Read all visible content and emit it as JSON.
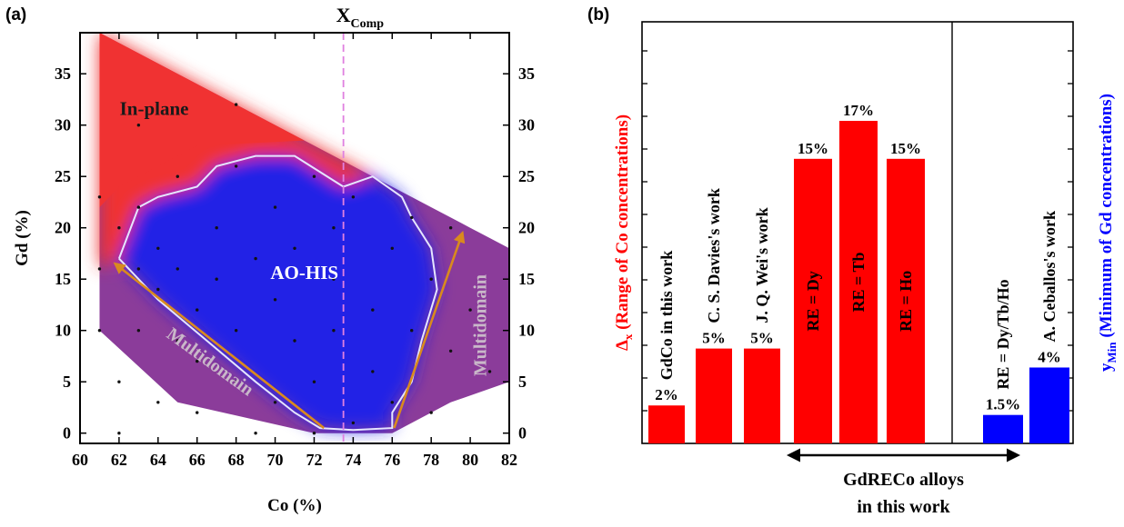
{
  "chart_data": [
    {
      "panel_label": "(a)",
      "type": "heatmap",
      "xlabel": "Co (%)",
      "ylabel": "Gd (%)",
      "xlim": [
        60,
        82
      ],
      "ylim": [
        -1,
        39
      ],
      "x_ticks": [
        60,
        62,
        64,
        66,
        68,
        70,
        72,
        74,
        76,
        78,
        80,
        82
      ],
      "y_ticks": [
        0,
        5,
        10,
        15,
        20,
        25,
        30,
        35
      ],
      "right_axis_ticks": [
        0,
        5,
        10,
        15,
        20,
        25,
        30,
        35
      ],
      "grid": false,
      "colors": {
        "in_plane": "#f03232",
        "ao_his": "#2323e6",
        "multidomain": "#8b3c9a",
        "arrow": "#d98a1e",
        "xcomp_line": "#e080e0",
        "boundary": "#e6e6ff"
      },
      "xcomp": {
        "label_main": "X",
        "label_sub": "Comp",
        "x": 73.5
      },
      "region_outline": [
        [
          61,
          39
        ],
        [
          65,
          35
        ],
        [
          75,
          25
        ],
        [
          78,
          22
        ],
        [
          80,
          20
        ],
        [
          82,
          18
        ],
        [
          82,
          5
        ],
        [
          79,
          3
        ],
        [
          76,
          0
        ],
        [
          72,
          0
        ],
        [
          65,
          3
        ],
        [
          61,
          10
        ]
      ],
      "in_plane_region": [
        [
          61,
          39
        ],
        [
          65,
          35
        ],
        [
          75,
          25
        ],
        [
          73.5,
          24
        ],
        [
          71,
          27
        ],
        [
          69,
          27
        ],
        [
          67,
          26
        ],
        [
          66,
          24
        ],
        [
          64,
          23
        ],
        [
          63,
          22
        ],
        [
          62,
          17
        ],
        [
          61,
          16
        ]
      ],
      "ao_his_region": [
        [
          62,
          17
        ],
        [
          63,
          22
        ],
        [
          64,
          23
        ],
        [
          66,
          24
        ],
        [
          67,
          26
        ],
        [
          69,
          27
        ],
        [
          71,
          27
        ],
        [
          73.5,
          24
        ],
        [
          75,
          25
        ],
        [
          76.5,
          23
        ],
        [
          77,
          21
        ],
        [
          78,
          18
        ],
        [
          78.3,
          14
        ],
        [
          77.5,
          9
        ],
        [
          77,
          5
        ],
        [
          76,
          2
        ],
        [
          76,
          0.5
        ],
        [
          74,
          0.3
        ],
        [
          72.3,
          0.5
        ],
        [
          71,
          2
        ],
        [
          69,
          5
        ],
        [
          66.5,
          9
        ],
        [
          64,
          13
        ]
      ],
      "boundary_curve": [
        [
          62,
          17
        ],
        [
          63,
          22
        ],
        [
          64,
          23
        ],
        [
          66,
          24
        ],
        [
          67,
          26
        ],
        [
          69,
          27
        ],
        [
          71,
          27
        ],
        [
          73.5,
          24
        ],
        [
          75,
          25
        ],
        [
          76.5,
          23
        ],
        [
          77,
          21
        ],
        [
          78,
          18
        ],
        [
          78.3,
          14
        ],
        [
          77.5,
          9
        ],
        [
          77,
          5
        ],
        [
          76,
          2
        ],
        [
          76,
          0.5
        ],
        [
          74,
          0.3
        ],
        [
          72.3,
          0.5
        ],
        [
          71,
          2
        ],
        [
          69,
          5
        ],
        [
          66.5,
          9
        ],
        [
          64,
          13
        ],
        [
          62,
          17
        ]
      ],
      "sample_points": [
        [
          61,
          16
        ],
        [
          61,
          23
        ],
        [
          61,
          10
        ],
        [
          62,
          0
        ],
        [
          62,
          5
        ],
        [
          62,
          20
        ],
        [
          63,
          30
        ],
        [
          63,
          22
        ],
        [
          63,
          16
        ],
        [
          63,
          10
        ],
        [
          64,
          3
        ],
        [
          64,
          14
        ],
        [
          64,
          18
        ],
        [
          65,
          25
        ],
        [
          65,
          16
        ],
        [
          65,
          9
        ],
        [
          66,
          2
        ],
        [
          66,
          7
        ],
        [
          66,
          12
        ],
        [
          67,
          20
        ],
        [
          67,
          15
        ],
        [
          68,
          32
        ],
        [
          68,
          26
        ],
        [
          68,
          10
        ],
        [
          68,
          5
        ],
        [
          69,
          17
        ],
        [
          69,
          0
        ],
        [
          70,
          22
        ],
        [
          70,
          13
        ],
        [
          70,
          3
        ],
        [
          71,
          18
        ],
        [
          71,
          9
        ],
        [
          72,
          25
        ],
        [
          72,
          5
        ],
        [
          72,
          0
        ],
        [
          73,
          15
        ],
        [
          73,
          20
        ],
        [
          73,
          10
        ],
        [
          74,
          1
        ],
        [
          74,
          23
        ],
        [
          75,
          12
        ],
        [
          75,
          6
        ],
        [
          76,
          18
        ],
        [
          76,
          3
        ],
        [
          77,
          21
        ],
        [
          77,
          10
        ],
        [
          78,
          15
        ],
        [
          78,
          2
        ],
        [
          79,
          8
        ],
        [
          79,
          20
        ],
        [
          80,
          12
        ],
        [
          81,
          6
        ]
      ],
      "annotations": [
        {
          "text": "In-plane",
          "x": 63.8,
          "y": 31
        },
        {
          "text": "AO-HIS",
          "x": 71.5,
          "y": 15
        },
        {
          "text": "Multidomain",
          "x": 66.5,
          "y": 6.5,
          "rotation": 36
        },
        {
          "text": "Multidomain",
          "x": 80.8,
          "y": 10.5,
          "rotation": -90
        }
      ],
      "arrows": [
        {
          "from": [
            72.5,
            0.5
          ],
          "to": [
            61.8,
            16.5
          ]
        },
        {
          "from": [
            76.1,
            0.5
          ],
          "to": [
            79.6,
            19.5
          ]
        }
      ]
    },
    {
      "panel_label": "(b)",
      "type": "bar",
      "ylabel_left_main": "Δ",
      "ylabel_left_sub": "x",
      "ylabel_left_rest": " (Range of Co concentrations)",
      "ylabel_right_main": "y",
      "ylabel_right_sub": "Min",
      "ylabel_right_rest": " (Minimum of Gd concentrations)",
      "ylim": [
        0,
        20
      ],
      "colors": {
        "left": "#ff0000",
        "right": "#0000ff",
        "divider": "#000000"
      },
      "bars": [
        {
          "value": 2,
          "value_label": "2%",
          "label": "GdCo in this work",
          "color": "#ff0000",
          "label_outside": true
        },
        {
          "value": 5,
          "value_label": "5%",
          "label": "C. S. Davies's work",
          "color": "#ff0000",
          "label_outside": true
        },
        {
          "value": 5,
          "value_label": "5%",
          "label": "J. Q. Wei's work",
          "color": "#ff0000",
          "label_outside": true
        },
        {
          "value": 15,
          "value_label": "15%",
          "label": "RE = Dy",
          "color": "#ff0000",
          "label_outside": false
        },
        {
          "value": 17,
          "value_label": "17%",
          "label": "RE = Tb",
          "color": "#ff0000",
          "label_outside": false
        },
        {
          "value": 15,
          "value_label": "15%",
          "label": "RE = Ho",
          "color": "#ff0000",
          "label_outside": false
        },
        {
          "value": 1.5,
          "value_label": "1.5%",
          "label": "RE = Dy/Tb/Ho",
          "color": "#0000ff",
          "label_outside": true
        },
        {
          "value": 4,
          "value_label": "4%",
          "label": "A. Ceballos's work",
          "color": "#0000ff",
          "label_outside": true
        }
      ],
      "bracket": {
        "from_bar": 3,
        "to_bar": 6,
        "line1": "GdRECo alloys",
        "line2": "in this work"
      }
    }
  ]
}
